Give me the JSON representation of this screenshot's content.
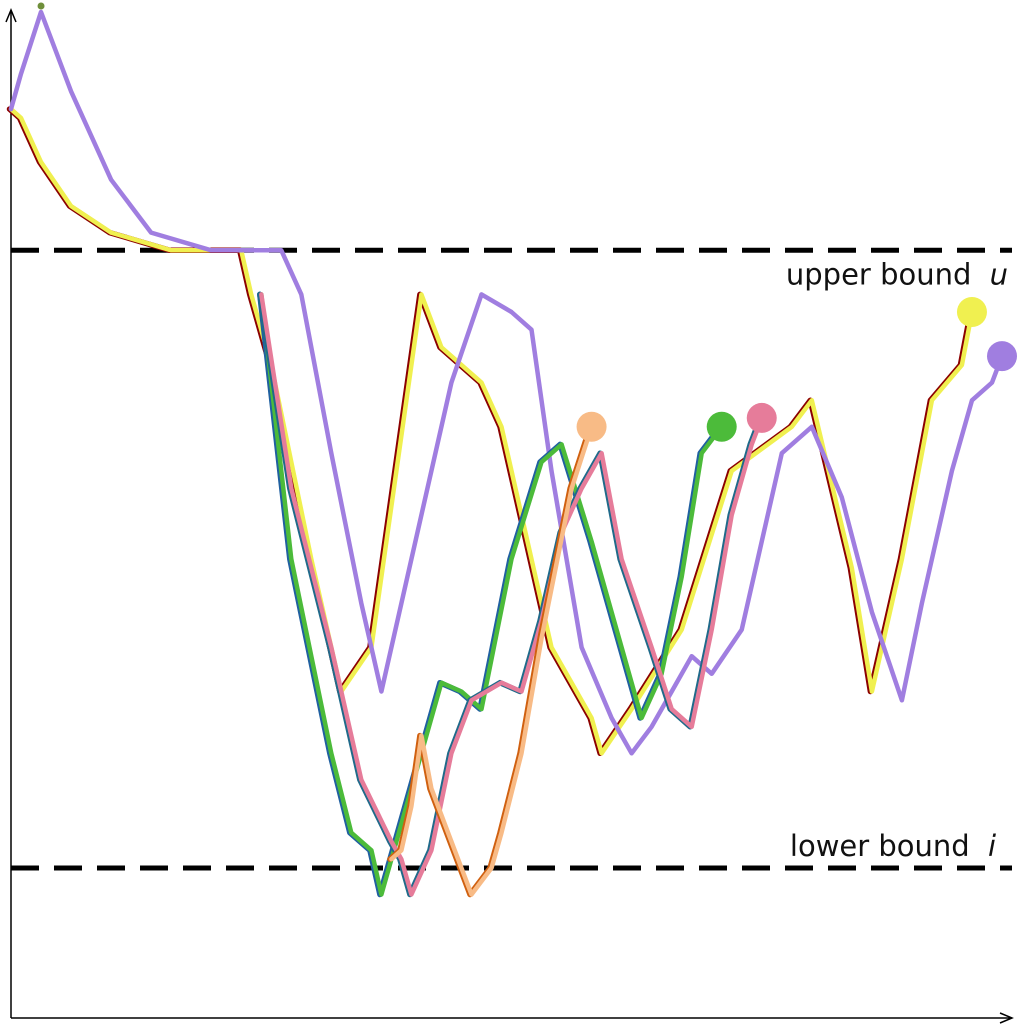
{
  "chart_data": {
    "type": "line",
    "title": "",
    "xlabel": "",
    "ylabel": "",
    "xlim": [
      0,
      100
    ],
    "ylim": [
      -12,
      102
    ],
    "grid": false,
    "legend": "none",
    "bounds": {
      "upper": {
        "label": "upper bound",
        "symbol": "u",
        "value": 75
      },
      "lower": {
        "label": "lower bound",
        "symbol": "i",
        "value": 5
      },
      "color": "#000000"
    },
    "series": [
      {
        "color": "#f0f050",
        "edge_color": "#8b0000",
        "marker_end": true,
        "points": [
          [
            0,
            91
          ],
          [
            1,
            90
          ],
          [
            3,
            85
          ],
          [
            6,
            80
          ],
          [
            10,
            77
          ],
          [
            16,
            75
          ],
          [
            23,
            75
          ],
          [
            24,
            70
          ],
          [
            26,
            62
          ],
          [
            30,
            40
          ],
          [
            33,
            25
          ],
          [
            36,
            30
          ],
          [
            41,
            70
          ],
          [
            43,
            64
          ],
          [
            47,
            60
          ],
          [
            49,
            55
          ],
          [
            54,
            30
          ],
          [
            58,
            22
          ],
          [
            59,
            18
          ],
          [
            62,
            23
          ],
          [
            67,
            32
          ],
          [
            72,
            50
          ],
          [
            78,
            55
          ],
          [
            80,
            58
          ],
          [
            84,
            39
          ],
          [
            86,
            25
          ],
          [
            89,
            40
          ],
          [
            92,
            58
          ],
          [
            95,
            62
          ],
          [
            96,
            68
          ]
        ]
      },
      {
        "color": "#a07ee0",
        "marker_start": true,
        "marker_end": true,
        "points": [
          [
            0,
            91
          ],
          [
            1,
            95
          ],
          [
            3,
            102
          ],
          [
            6,
            93
          ],
          [
            10,
            83
          ],
          [
            14,
            77
          ],
          [
            20,
            75
          ],
          [
            27,
            75
          ],
          [
            29,
            70
          ],
          [
            32,
            52
          ],
          [
            35,
            35
          ],
          [
            37,
            25
          ],
          [
            41,
            45
          ],
          [
            44,
            60
          ],
          [
            47,
            70
          ],
          [
            50,
            68
          ],
          [
            52,
            66
          ],
          [
            54,
            50
          ],
          [
            57,
            30
          ],
          [
            60,
            22
          ],
          [
            62,
            18
          ],
          [
            64,
            21
          ],
          [
            66,
            25
          ],
          [
            68,
            29
          ],
          [
            70,
            27
          ],
          [
            73,
            32
          ],
          [
            77,
            52
          ],
          [
            80,
            55
          ],
          [
            83,
            47
          ],
          [
            86,
            34
          ],
          [
            89,
            24
          ],
          [
            91,
            35
          ],
          [
            94,
            50
          ],
          [
            96,
            58
          ],
          [
            98,
            60
          ],
          [
            99,
            63
          ]
        ]
      },
      {
        "color": "#4cbb3a",
        "edge_color": "#2060a0",
        "marker_end": true,
        "points": [
          [
            25,
            70
          ],
          [
            28,
            40
          ],
          [
            32,
            18
          ],
          [
            34,
            9
          ],
          [
            36,
            7
          ],
          [
            37,
            2
          ],
          [
            38,
            6
          ],
          [
            40,
            14
          ],
          [
            43,
            26
          ],
          [
            45,
            25
          ],
          [
            47,
            23
          ],
          [
            50,
            40
          ],
          [
            53,
            51
          ],
          [
            55,
            53
          ],
          [
            58,
            42
          ],
          [
            61,
            30
          ],
          [
            63,
            22
          ],
          [
            65,
            27
          ],
          [
            67,
            38
          ],
          [
            69,
            52
          ],
          [
            71,
            55
          ]
        ]
      },
      {
        "color": "#e67c9a",
        "edge_color": "#1f6a8a",
        "marker_end": true,
        "points": [
          [
            25,
            70
          ],
          [
            28,
            48
          ],
          [
            32,
            30
          ],
          [
            35,
            15
          ],
          [
            38,
            8
          ],
          [
            39,
            6
          ],
          [
            40,
            2
          ],
          [
            42,
            7
          ],
          [
            44,
            18
          ],
          [
            46,
            24
          ],
          [
            49,
            26
          ],
          [
            51,
            25
          ],
          [
            53,
            33
          ],
          [
            55,
            43
          ],
          [
            57,
            48
          ],
          [
            59,
            52
          ],
          [
            61,
            40
          ],
          [
            64,
            30
          ],
          [
            66,
            23
          ],
          [
            68,
            21
          ],
          [
            70,
            32
          ],
          [
            72,
            45
          ],
          [
            74,
            53
          ],
          [
            75,
            56
          ]
        ]
      },
      {
        "color": "#f8bb86",
        "edge_color": "#d06010",
        "marker_end": true,
        "points": [
          [
            38,
            6
          ],
          [
            39,
            7
          ],
          [
            40,
            12
          ],
          [
            41,
            20
          ],
          [
            42,
            14
          ],
          [
            44,
            8
          ],
          [
            46,
            2
          ],
          [
            48,
            5
          ],
          [
            49,
            9
          ],
          [
            51,
            18
          ],
          [
            53,
            31
          ],
          [
            56,
            48
          ],
          [
            58,
            55
          ]
        ]
      }
    ],
    "annotations": [
      {
        "text": "upper bound",
        "symbol": "u",
        "attach": "upper",
        "position": "right-below"
      },
      {
        "text": "lower bound",
        "symbol": "i",
        "attach": "lower",
        "position": "right-above"
      }
    ]
  }
}
